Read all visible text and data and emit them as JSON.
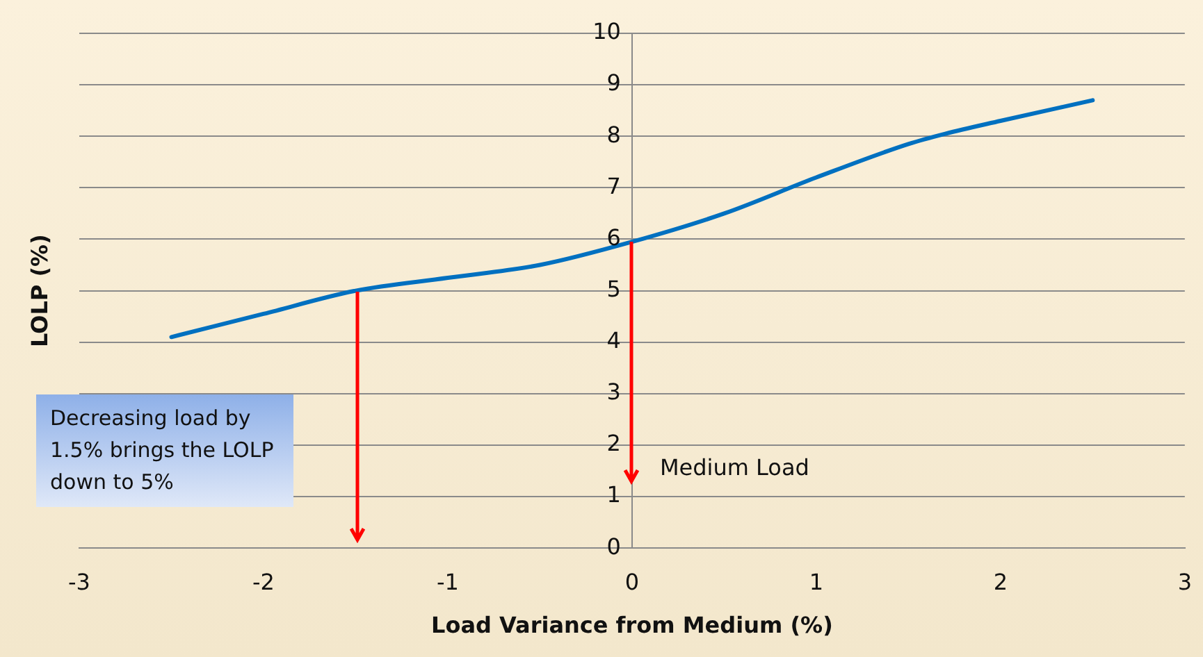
{
  "chart_data": {
    "type": "line",
    "xlabel": "Load Variance from Medium (%)",
    "ylabel": "LOLP (%)",
    "x": [
      -2.5,
      -2,
      -1.5,
      -1,
      -0.5,
      0,
      0.5,
      1,
      1.5,
      1.7,
      2,
      2.5
    ],
    "series": [
      {
        "color": "#0070c0",
        "values": [
          4.1,
          4.55,
          5.0,
          5.25,
          5.5,
          5.95,
          6.5,
          7.2,
          7.85,
          8.05,
          8.3,
          8.7
        ]
      }
    ],
    "xlim": [
      -3,
      3
    ],
    "xticks": [
      -3,
      -2,
      -1,
      0,
      1,
      2,
      3
    ],
    "ylim": [
      0,
      10
    ],
    "yticks": [
      0,
      1,
      2,
      3,
      4,
      5,
      6,
      7,
      8,
      9,
      10
    ],
    "grid": "y",
    "legend": false,
    "marker": "none",
    "line_style": "solid",
    "annotations": [
      "Decreasing load by 1.5% brings the LOLP down to 5%",
      {
        "text": "Medium Load",
        "x": 0,
        "y": 5.95
      }
    ]
  }
}
